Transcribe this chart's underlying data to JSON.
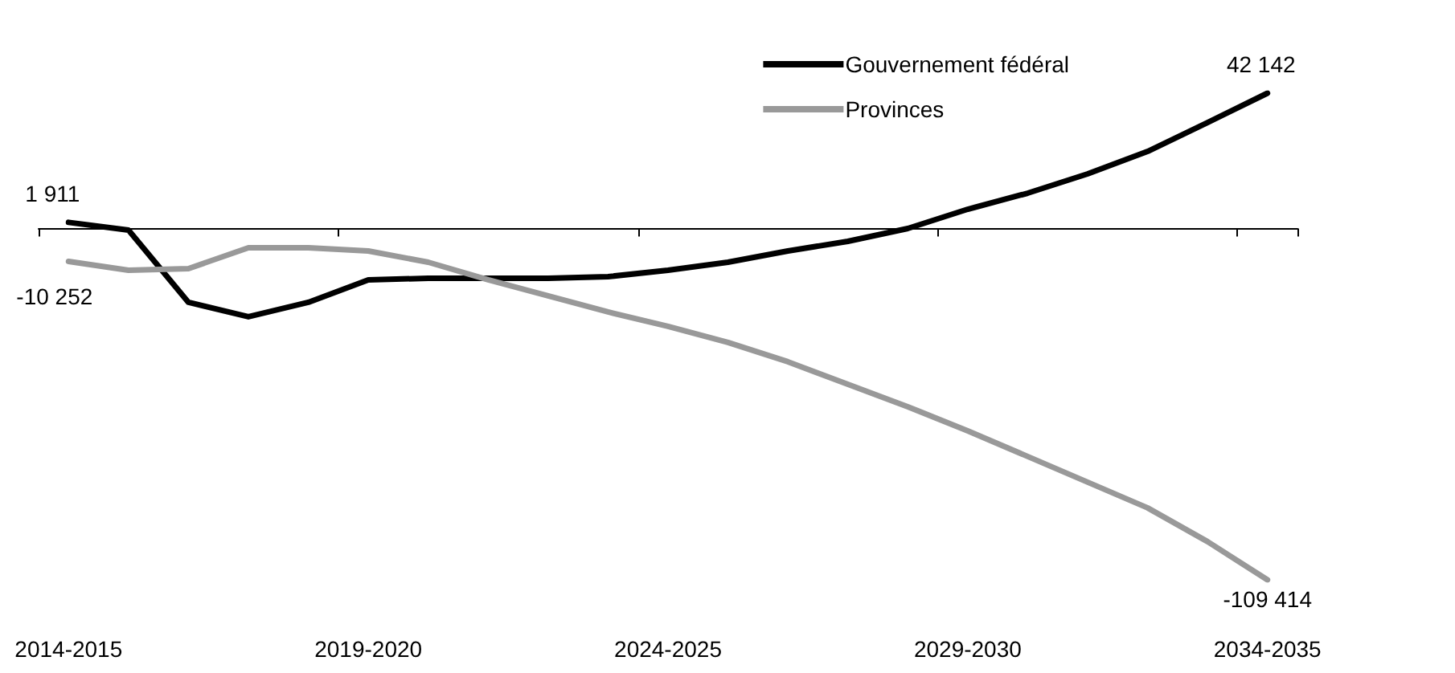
{
  "chart_data": {
    "type": "line",
    "categories": [
      "2014-2015",
      null,
      null,
      null,
      null,
      "2019-2020",
      null,
      null,
      null,
      null,
      "2024-2025",
      null,
      null,
      null,
      null,
      "2029-2030",
      null,
      null,
      null,
      null,
      "2034-2035"
    ],
    "series": [
      {
        "name": "Gouvernement fédéral",
        "color": "#000000",
        "values": [
          1911,
          -500,
          -23000,
          -27500,
          -23000,
          -16000,
          -15500,
          -15500,
          -15500,
          -15000,
          -13000,
          -10500,
          -7000,
          -4000,
          0,
          6000,
          11000,
          17000,
          24000,
          33000,
          42142
        ],
        "value_labels": [
          "1 911",
          null,
          null,
          null,
          null,
          null,
          null,
          null,
          null,
          null,
          null,
          null,
          null,
          null,
          null,
          null,
          null,
          null,
          null,
          null,
          "42 142"
        ]
      },
      {
        "name": "Provinces",
        "color": "#999999",
        "values": [
          -10252,
          -13000,
          -12500,
          -6000,
          -6000,
          -7000,
          -10500,
          -16000,
          -21000,
          -26000,
          -30500,
          -35500,
          -41500,
          -48500,
          -55500,
          -63000,
          -71000,
          -79000,
          -87000,
          -97500,
          -109414
        ],
        "value_labels": [
          "-10 252",
          null,
          null,
          null,
          null,
          null,
          null,
          null,
          null,
          null,
          null,
          null,
          null,
          null,
          null,
          null,
          null,
          null,
          null,
          null,
          "-109 414"
        ]
      }
    ],
    "legend": "top right",
    "grid": false,
    "marker": "none",
    "line_style": "solid"
  }
}
